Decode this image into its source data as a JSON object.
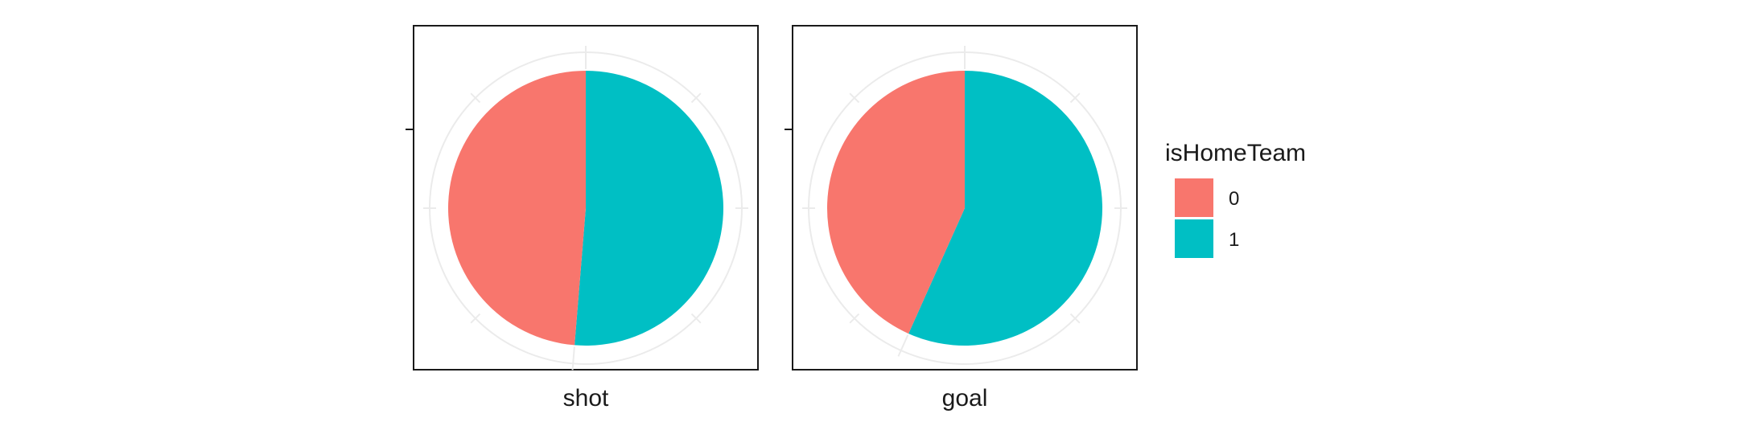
{
  "chart_data": {
    "type": "pie",
    "title": "",
    "xlabel": "",
    "ylabel": "",
    "facets": [
      {
        "label": "shot",
        "slices": [
          {
            "category": "0",
            "value": 0.487
          },
          {
            "category": "1",
            "value": 0.513
          }
        ]
      },
      {
        "label": "goal",
        "slices": [
          {
            "category": "0",
            "value": 0.433
          },
          {
            "category": "1",
            "value": 0.567
          }
        ]
      }
    ],
    "legend": {
      "title": "isHomeTeam",
      "placement": "right",
      "entries": [
        {
          "label": "0",
          "color": "#F8766D"
        },
        {
          "label": "1",
          "color": "#00BFC4"
        }
      ]
    },
    "colors": {
      "0": "#F8766D",
      "1": "#00BFC4"
    },
    "grid": true
  }
}
